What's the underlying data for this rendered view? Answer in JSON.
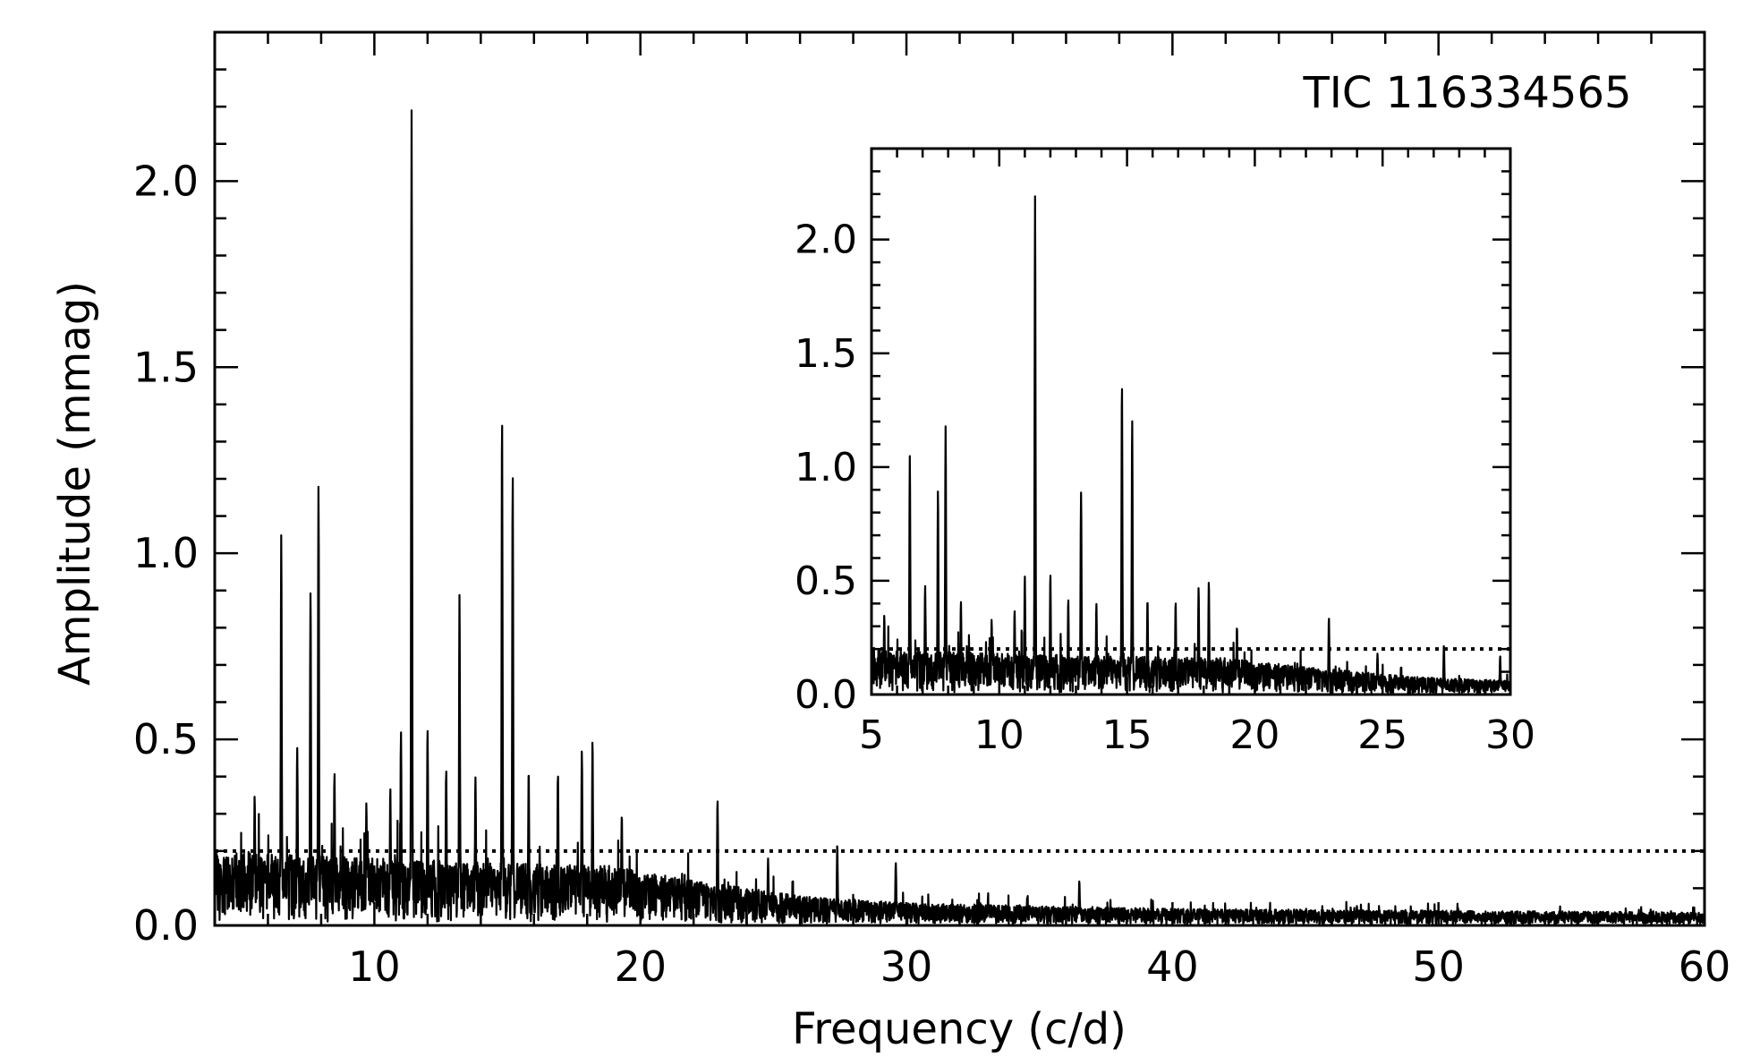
{
  "chart_data": [
    {
      "type": "line",
      "title": "TIC 116334565",
      "xlabel": "Frequency (c/d)",
      "ylabel": "Amplitude (mmag)",
      "xlim": [
        4,
        60
      ],
      "ylim": [
        0,
        2.4
      ],
      "xticks": [
        "10",
        "20",
        "30",
        "40",
        "50",
        "60"
      ],
      "yticks": [
        "0.0",
        "0.5",
        "1.0",
        "1.5",
        "2.0"
      ],
      "threshold": 0.2,
      "noise_envelope": [
        [
          4,
          0.2
        ],
        [
          10,
          0.18
        ],
        [
          19,
          0.16
        ],
        [
          22,
          0.12
        ],
        [
          26,
          0.08
        ],
        [
          30,
          0.06
        ],
        [
          40,
          0.045
        ],
        [
          60,
          0.035
        ]
      ],
      "peaks": [
        {
          "x": 5.5,
          "y": 0.35
        },
        {
          "x": 6.5,
          "y": 1.05
        },
        {
          "x": 7.1,
          "y": 0.48
        },
        {
          "x": 7.6,
          "y": 0.9
        },
        {
          "x": 7.9,
          "y": 1.18
        },
        {
          "x": 8.5,
          "y": 0.41
        },
        {
          "x": 9.7,
          "y": 0.33
        },
        {
          "x": 10.6,
          "y": 0.37
        },
        {
          "x": 11.0,
          "y": 0.52
        },
        {
          "x": 11.4,
          "y": 2.19
        },
        {
          "x": 12.0,
          "y": 0.53
        },
        {
          "x": 12.7,
          "y": 0.42
        },
        {
          "x": 13.2,
          "y": 0.89
        },
        {
          "x": 13.8,
          "y": 0.4
        },
        {
          "x": 14.8,
          "y": 1.37
        },
        {
          "x": 15.2,
          "y": 1.21
        },
        {
          "x": 15.8,
          "y": 0.42
        },
        {
          "x": 16.9,
          "y": 0.41
        },
        {
          "x": 17.8,
          "y": 0.47
        },
        {
          "x": 18.2,
          "y": 0.5
        },
        {
          "x": 19.3,
          "y": 0.3
        },
        {
          "x": 22.9,
          "y": 0.34
        },
        {
          "x": 24.8,
          "y": 0.18
        },
        {
          "x": 27.4,
          "y": 0.22
        },
        {
          "x": 29.6,
          "y": 0.17
        },
        {
          "x": 36.5,
          "y": 0.12
        }
      ]
    },
    {
      "type": "line",
      "title": "",
      "xlabel": "",
      "ylabel": "",
      "xlim": [
        5,
        30
      ],
      "ylim": [
        0,
        2.4
      ],
      "xticks": [
        "5",
        "10",
        "15",
        "20",
        "25",
        "30"
      ],
      "yticks": [
        "0.0",
        "0.5",
        "1.0",
        "1.5",
        "2.0"
      ],
      "threshold": 0.2
    }
  ]
}
